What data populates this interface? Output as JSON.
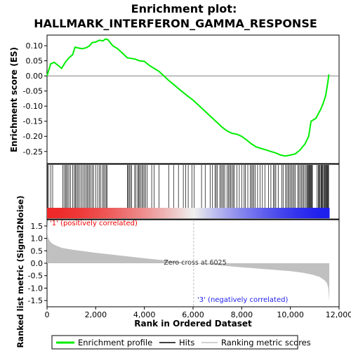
{
  "chart_data": {
    "type": "line",
    "title_line1": "Enrichment plot:",
    "title_line2": "HALLMARK_INTERFERON_GAMMA_RESPONSE",
    "xlabel": "Rank in Ordered Dataset",
    "es_panel": {
      "ylabel": "Enrichment score (ES)",
      "ylim": [
        -0.29,
        0.135
      ],
      "yticks": [
        0.1,
        0.05,
        0.0,
        -0.05,
        -0.1,
        -0.15,
        -0.2,
        -0.25
      ],
      "ytick_labels": [
        "0.10",
        "0.05",
        "0.00",
        "-0.05",
        "-0.10",
        "-0.15",
        "-0.20",
        "-0.25"
      ],
      "zero_line": true,
      "series_name": "Enrichment profile",
      "series_color": "#00ee00",
      "x": [
        0,
        150,
        300,
        450,
        600,
        750,
        900,
        1050,
        1150,
        1300,
        1450,
        1600,
        1750,
        1850,
        2000,
        2150,
        2300,
        2400,
        2500,
        2700,
        2900,
        3100,
        3300,
        3450,
        3600,
        3800,
        4000,
        4200,
        4400,
        4600,
        4800,
        5000,
        5200,
        5400,
        5600,
        5800,
        6000,
        6200,
        6400,
        6600,
        6800,
        7000,
        7200,
        7400,
        7600,
        7800,
        8000,
        8200,
        8400,
        8600,
        8800,
        9000,
        9200,
        9400,
        9600,
        9800,
        10000,
        10200,
        10400,
        10600,
        10750,
        10850,
        10950,
        11050,
        11150,
        11250,
        11350,
        11450,
        11500,
        11550,
        11580
      ],
      "y": [
        0.0,
        0.04,
        0.045,
        0.035,
        0.025,
        0.045,
        0.06,
        0.07,
        0.095,
        0.092,
        0.09,
        0.093,
        0.1,
        0.11,
        0.112,
        0.118,
        0.116,
        0.122,
        0.12,
        0.1,
        0.09,
        0.075,
        0.06,
        0.058,
        0.056,
        0.05,
        0.048,
        0.035,
        0.025,
        0.015,
        0.0,
        -0.015,
        -0.028,
        -0.042,
        -0.055,
        -0.068,
        -0.08,
        -0.095,
        -0.11,
        -0.125,
        -0.14,
        -0.155,
        -0.17,
        -0.182,
        -0.19,
        -0.193,
        -0.2,
        -0.212,
        -0.225,
        -0.235,
        -0.24,
        -0.245,
        -0.25,
        -0.255,
        -0.262,
        -0.265,
        -0.262,
        -0.258,
        -0.245,
        -0.225,
        -0.2,
        -0.15,
        -0.145,
        -0.14,
        -0.125,
        -0.11,
        -0.09,
        -0.065,
        -0.04,
        -0.015,
        0.005
      ]
    },
    "hits_panel": {
      "label": "Hits",
      "hit_ranks": [
        20,
        60,
        150,
        230,
        650,
        700,
        760,
        800,
        850,
        900,
        960,
        1050,
        1120,
        1160,
        1200,
        1260,
        1300,
        1360,
        1430,
        1480,
        1550,
        1600,
        1650,
        1700,
        1750,
        1800,
        1860,
        1920,
        2000,
        2080,
        2150,
        2200,
        2280,
        2330,
        2380,
        2430,
        2470,
        3300,
        3340,
        3380,
        3430,
        3480,
        3600,
        3650,
        3720,
        3760,
        3800,
        3850,
        3900,
        3950,
        4000,
        4050,
        4120,
        4300,
        4400,
        4600,
        5000,
        5200,
        5400,
        5600,
        5700,
        5800,
        5950,
        6050,
        6350,
        6500,
        6700,
        6800,
        6900,
        6950,
        7000,
        7100,
        7150,
        7200,
        7250,
        7300,
        7400,
        7450,
        7500,
        7550,
        7600,
        7650,
        7700,
        7800,
        7900,
        8000,
        8100,
        8150,
        8250,
        8350,
        8400,
        8450,
        8500,
        8550,
        8650,
        8750,
        8850,
        8950,
        9100,
        9200,
        9300,
        9350,
        9400,
        9500,
        9650,
        9700,
        9800,
        9850,
        9900,
        9950,
        10000,
        10050,
        10100,
        10150,
        10200,
        10300,
        10350,
        10400,
        10450,
        10500,
        10550,
        10600,
        10650,
        10700,
        10720,
        10750,
        10780,
        10800,
        10820,
        10850,
        10880,
        10900,
        11100,
        11150,
        11180,
        11200,
        11250,
        11280,
        11300,
        11330,
        11360,
        11400,
        11420,
        11450,
        11480,
        11500,
        11520,
        11550,
        11570
      ]
    },
    "rank_panel": {
      "ylabel": "Ranked list metric (Signal2Noise)",
      "ylim": [
        -1.75,
        1.75
      ],
      "yticks": [
        1.5,
        1.0,
        0.5,
        0.0,
        -0.5,
        -1.0,
        -1.5
      ],
      "ytick_labels": [
        "1.5",
        "1.0",
        "0.5",
        "0.0",
        "-0.5",
        "-1.0",
        "-1.5"
      ],
      "series_name": "Ranking metric scores",
      "series_color": "#c0c0c0",
      "x": [
        0,
        20,
        60,
        120,
        200,
        350,
        600,
        1000,
        2000,
        3000,
        4000,
        5000,
        6025,
        7000,
        8000,
        9000,
        10000,
        10500,
        10900,
        11200,
        11400,
        11500,
        11560,
        11600
      ],
      "y": [
        1.7,
        1.15,
        0.97,
        0.88,
        0.8,
        0.72,
        0.62,
        0.55,
        0.42,
        0.31,
        0.2,
        0.1,
        0.0,
        -0.08,
        -0.16,
        -0.24,
        -0.32,
        -0.38,
        -0.46,
        -0.55,
        -0.68,
        -0.8,
        -1.0,
        -1.55
      ],
      "pos_label": "'1' (positively correlated)",
      "neg_label": "'3' (negatively correlated)",
      "zero_cross_label": "Zero cross at 6025",
      "zero_cross_rank": 6025
    },
    "x_axis": {
      "xlim": [
        0,
        12000
      ],
      "xticks": [
        0,
        2000,
        4000,
        6000,
        8000,
        10000,
        12000
      ],
      "xtick_labels": [
        "0",
        "2,000",
        "4,000",
        "6,000",
        "8,000",
        "10,000",
        "12,000"
      ],
      "n_genes": 11600
    },
    "legend": [
      {
        "name": "Enrichment profile",
        "color": "#00ee00"
      },
      {
        "name": "Hits",
        "color": "#000000"
      },
      {
        "name": "Ranking metric scores",
        "color": "#c0c0c0"
      }
    ]
  }
}
